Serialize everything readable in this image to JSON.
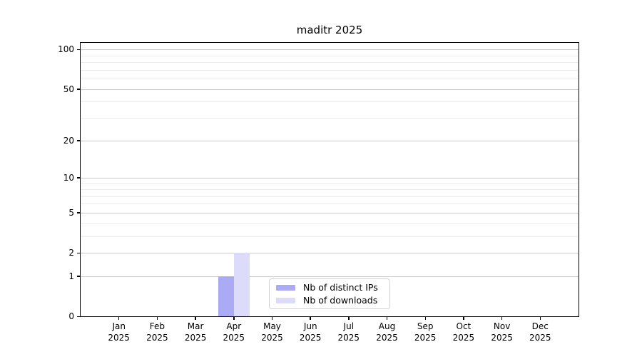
{
  "title": "maditr 2025",
  "chart_data": {
    "type": "bar",
    "title": "maditr 2025",
    "categories": [
      "Jan",
      "Feb",
      "Mar",
      "Apr",
      "May",
      "Jun",
      "Jul",
      "Aug",
      "Sep",
      "Oct",
      "Nov",
      "Dec"
    ],
    "x_tick_year": "2025",
    "series": [
      {
        "name": "Nb of distinct IPs",
        "color": "#aaaaf5",
        "values": [
          0,
          0,
          0,
          1,
          0,
          0,
          0,
          0,
          0,
          0,
          0,
          0
        ]
      },
      {
        "name": "Nb of downloads",
        "color": "#dcdcfa",
        "values": [
          0,
          0,
          0,
          2,
          0,
          0,
          0,
          0,
          0,
          0,
          0,
          0
        ]
      }
    ],
    "xlabel": "",
    "ylabel": "",
    "y_scale": "log1p",
    "y_ticks": [
      0,
      1,
      2,
      5,
      10,
      20,
      50,
      100
    ],
    "y_minor_ticks": [
      3,
      4,
      6,
      7,
      8,
      9,
      30,
      40,
      60,
      70,
      80,
      90
    ],
    "ylim": [
      0,
      112.3
    ],
    "grid": true,
    "legend_position": "lower center"
  },
  "legend": {
    "items": [
      {
        "label": "Nb of distinct IPs"
      },
      {
        "label": "Nb of downloads"
      }
    ]
  },
  "colors": {
    "bar_distinct_ips": "#aaaaf5",
    "bar_downloads": "#dcdcfa",
    "grid_major": "#c9c9c9",
    "grid_minor": "#ececec",
    "axis": "#000000",
    "background": "#ffffff"
  }
}
